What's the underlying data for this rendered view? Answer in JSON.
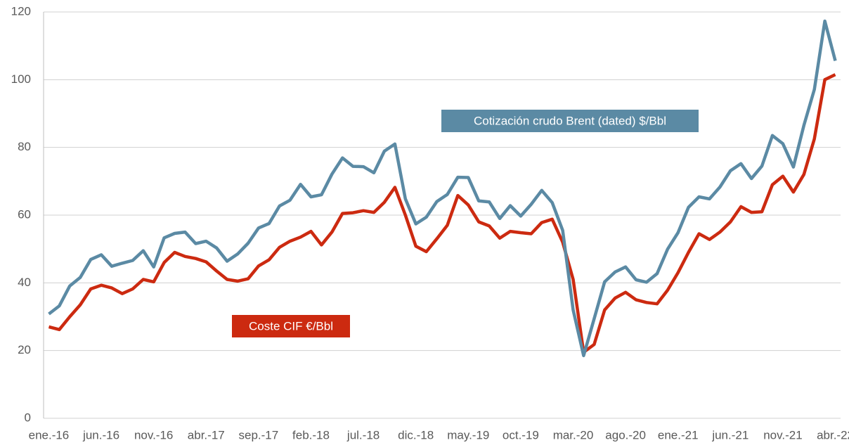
{
  "chart_data": {
    "type": "line",
    "categories": [
      "ene.-16",
      null,
      null,
      null,
      null,
      "jun.-16",
      null,
      null,
      null,
      null,
      "nov.-16",
      null,
      null,
      null,
      null,
      "abr.-17",
      null,
      null,
      null,
      null,
      "sep.-17",
      null,
      null,
      null,
      null,
      "feb.-18",
      null,
      null,
      null,
      null,
      "jul.-18",
      null,
      null,
      null,
      null,
      "dic.-18",
      null,
      null,
      null,
      null,
      "may.-19",
      null,
      null,
      null,
      null,
      "oct.-19",
      null,
      null,
      null,
      null,
      "mar.-20",
      null,
      null,
      null,
      null,
      "ago.-20",
      null,
      null,
      null,
      null,
      "ene.-21",
      null,
      null,
      null,
      null,
      "jun.-21",
      null,
      null,
      null,
      null,
      "nov.-21",
      null,
      null,
      null,
      null,
      "abr.-22"
    ],
    "series": [
      {
        "name": "Cotización crudo Brent (dated) $/Bbl",
        "color": "#5b8aa4",
        "values": [
          30.8,
          33.2,
          39.1,
          41.6,
          46.9,
          48.3,
          44.9,
          45.8,
          46.6,
          49.5,
          44.7,
          53.3,
          54.6,
          55.0,
          51.6,
          52.3,
          50.3,
          46.4,
          48.5,
          51.7,
          56.2,
          57.5,
          62.7,
          64.4,
          69.1,
          65.4,
          66.0,
          72.1,
          76.9,
          74.4,
          74.3,
          72.5,
          78.9,
          81.0,
          64.8,
          57.4,
          59.4,
          64.0,
          66.1,
          71.2,
          71.1,
          64.2,
          63.9,
          59.0,
          62.8,
          59.7,
          63.2,
          67.3,
          63.7,
          55.5,
          32.0,
          18.5,
          29.4,
          40.3,
          43.2,
          44.7,
          40.9,
          40.2,
          42.7,
          49.9,
          54.8,
          62.3,
          65.4,
          64.8,
          68.3,
          73.1,
          75.2,
          70.8,
          74.5,
          83.5,
          81.1,
          74.2,
          86.5,
          97.1,
          117.3,
          105.6
        ]
      },
      {
        "name": "Coste CIF €/Bbl",
        "color": "#cc2a10",
        "values": [
          27,
          26.2,
          30,
          33.5,
          38.2,
          39.3,
          38.5,
          36.8,
          38.2,
          41,
          40.3,
          46,
          49,
          47.8,
          47.2,
          46.2,
          43.5,
          41,
          40.5,
          41.2,
          45,
          46.8,
          50.5,
          52.3,
          53.5,
          55.2,
          51.2,
          55,
          60.5,
          60.7,
          61.3,
          60.8,
          63.8,
          68.2,
          60,
          50.8,
          49.2,
          53,
          57,
          65.8,
          63,
          58,
          56.8,
          53.2,
          55.2,
          54.8,
          54.5,
          57.8,
          58.8,
          52,
          41,
          19.5,
          21.8,
          32,
          35.5,
          37.2,
          35,
          34.2,
          33.8,
          37.8,
          43,
          49,
          54.5,
          52.8,
          55,
          58,
          62.5,
          60.8,
          61,
          69,
          71.5,
          66.8,
          72,
          82.5,
          100,
          101.5
        ]
      }
    ],
    "ylim": [
      0,
      120
    ],
    "yticks": [
      0,
      20,
      40,
      60,
      80,
      100,
      120
    ],
    "grid": true
  }
}
